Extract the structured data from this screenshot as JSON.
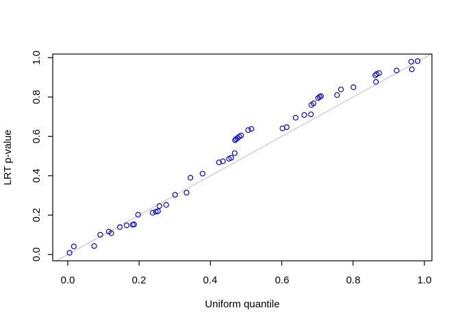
{
  "figure": {
    "background": "#ffffff"
  },
  "chart_data": {
    "type": "scatter",
    "title": "",
    "xlabel": "Uniform quantile",
    "ylabel": "LRT p-value",
    "xlim": [
      0,
      1
    ],
    "ylim": [
      0,
      1
    ],
    "grid": false,
    "legend": null,
    "marker": "open-circle",
    "point_color": "#0000ff",
    "axis_color": "#000000",
    "x_ticks": [
      "0.0",
      "0.2",
      "0.4",
      "0.6",
      "0.8",
      "1.0"
    ],
    "y_ticks": [
      "0.0",
      "0.2",
      "0.4",
      "0.6",
      "0.8",
      "1.0"
    ],
    "x_tick_values": [
      0,
      0.2,
      0.4,
      0.6,
      0.8,
      1.0
    ],
    "y_tick_values": [
      0,
      0.2,
      0.4,
      0.6,
      0.8,
      1.0
    ],
    "refline": {
      "type": "identity",
      "slope": 1,
      "intercept": 0,
      "color": "#bebebe"
    },
    "points": [
      [
        0.005,
        0.008
      ],
      [
        0.017,
        0.041
      ],
      [
        0.074,
        0.043
      ],
      [
        0.091,
        0.1
      ],
      [
        0.115,
        0.116
      ],
      [
        0.122,
        0.108
      ],
      [
        0.146,
        0.139
      ],
      [
        0.165,
        0.148
      ],
      [
        0.182,
        0.151
      ],
      [
        0.186,
        0.153
      ],
      [
        0.197,
        0.202
      ],
      [
        0.238,
        0.212
      ],
      [
        0.247,
        0.217
      ],
      [
        0.253,
        0.22
      ],
      [
        0.257,
        0.246
      ],
      [
        0.276,
        0.252
      ],
      [
        0.301,
        0.303
      ],
      [
        0.333,
        0.314
      ],
      [
        0.344,
        0.39
      ],
      [
        0.378,
        0.411
      ],
      [
        0.424,
        0.468
      ],
      [
        0.435,
        0.474
      ],
      [
        0.452,
        0.486
      ],
      [
        0.458,
        0.491
      ],
      [
        0.468,
        0.515
      ],
      [
        0.469,
        0.581
      ],
      [
        0.472,
        0.586
      ],
      [
        0.476,
        0.592
      ],
      [
        0.481,
        0.599
      ],
      [
        0.486,
        0.605
      ],
      [
        0.506,
        0.632
      ],
      [
        0.515,
        0.638
      ],
      [
        0.602,
        0.641
      ],
      [
        0.614,
        0.647
      ],
      [
        0.639,
        0.695
      ],
      [
        0.663,
        0.709
      ],
      [
        0.682,
        0.712
      ],
      [
        0.683,
        0.76
      ],
      [
        0.689,
        0.768
      ],
      [
        0.702,
        0.795
      ],
      [
        0.706,
        0.801
      ],
      [
        0.71,
        0.805
      ],
      [
        0.755,
        0.81
      ],
      [
        0.766,
        0.839
      ],
      [
        0.801,
        0.85
      ],
      [
        0.864,
        0.877
      ],
      [
        0.862,
        0.91
      ],
      [
        0.866,
        0.917
      ],
      [
        0.873,
        0.922
      ],
      [
        0.922,
        0.935
      ],
      [
        0.965,
        0.941
      ],
      [
        0.963,
        0.98
      ],
      [
        0.981,
        0.983
      ]
    ]
  }
}
